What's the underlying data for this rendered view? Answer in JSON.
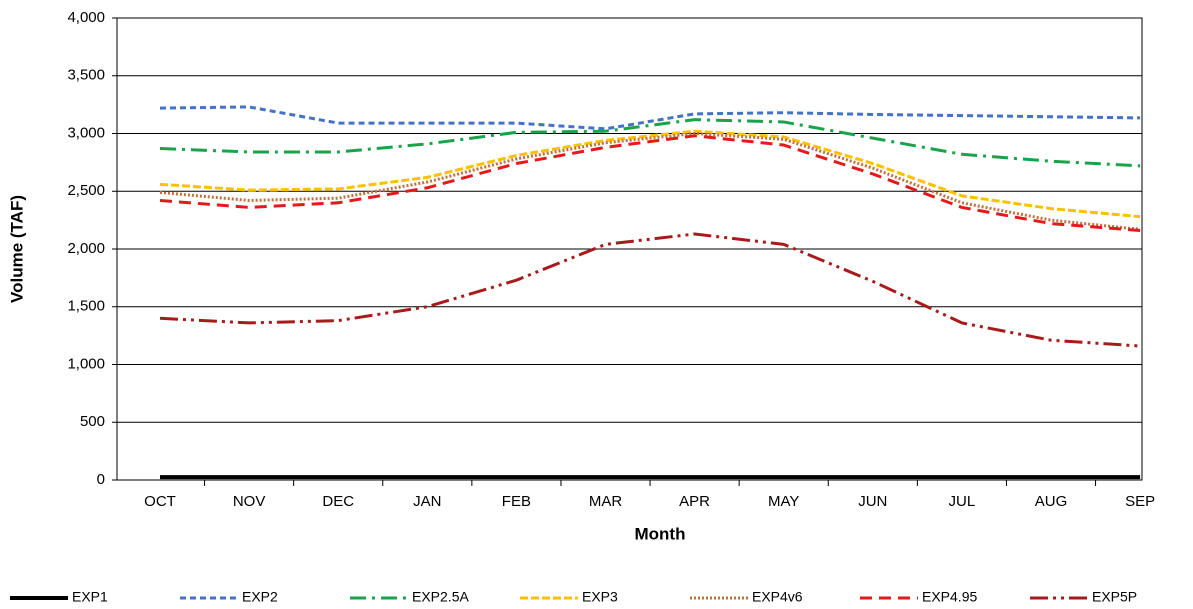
{
  "chart_data": {
    "type": "line",
    "xlabel": "Month",
    "ylabel": "Volume (TAF)",
    "categories": [
      "OCT",
      "NOV",
      "DEC",
      "JAN",
      "FEB",
      "MAR",
      "APR",
      "MAY",
      "JUN",
      "JUL",
      "AUG",
      "SEP"
    ],
    "ylim": [
      0,
      4000
    ],
    "yticks": [
      0,
      500,
      {
        "value": 1000,
        "label": "1,000"
      },
      {
        "value": 1500,
        "label": "1,500"
      },
      {
        "value": 2000,
        "label": "2,000"
      },
      {
        "value": 2500,
        "label": "2,500"
      },
      {
        "value": 3000,
        "label": "3,000"
      },
      {
        "value": 3500,
        "label": "3,500"
      },
      {
        "value": 4000,
        "label": "4,000"
      }
    ],
    "grid": true,
    "legend": "bottom",
    "series": [
      {
        "name": "EXP1",
        "color": "#000000",
        "dash": "",
        "values": [
          25,
          25,
          25,
          25,
          25,
          25,
          25,
          25,
          25,
          25,
          25,
          25
        ]
      },
      {
        "name": "EXP2",
        "color": "#4472c4",
        "dash": "6,4",
        "values": [
          3220,
          3230,
          3090,
          3090,
          3090,
          3040,
          3170,
          3180,
          3165,
          3155,
          3145,
          3135
        ]
      },
      {
        "name": "EXP2.5A",
        "color": "#1aa34a",
        "dash": "16,6,3,6",
        "values": [
          2870,
          2840,
          2840,
          2910,
          3010,
          3020,
          3120,
          3100,
          2960,
          2820,
          2760,
          2720
        ]
      },
      {
        "name": "EXP3",
        "color": "#ffc000",
        "dash": "8,3",
        "values": [
          2560,
          2510,
          2520,
          2620,
          2810,
          2940,
          3020,
          2970,
          2740,
          2460,
          2350,
          2280
        ]
      },
      {
        "name": "EXP4v6",
        "color": "#c0703a",
        "dash": "2,2",
        "values": [
          2490,
          2420,
          2440,
          2580,
          2780,
          2920,
          3000,
          2950,
          2700,
          2400,
          2250,
          2170
        ]
      },
      {
        "name": "EXP4.95",
        "color": "#e31a1c",
        "dash": "12,7",
        "values": [
          2420,
          2360,
          2400,
          2530,
          2740,
          2880,
          2980,
          2900,
          2650,
          2360,
          2220,
          2160
        ]
      },
      {
        "name": "EXP5P",
        "color": "#a81b1b",
        "dash": "18,5,3,5,3,5",
        "values": [
          1400,
          1360,
          1380,
          1500,
          1730,
          2040,
          2130,
          2040,
          1720,
          1360,
          1210,
          1160
        ]
      }
    ]
  }
}
